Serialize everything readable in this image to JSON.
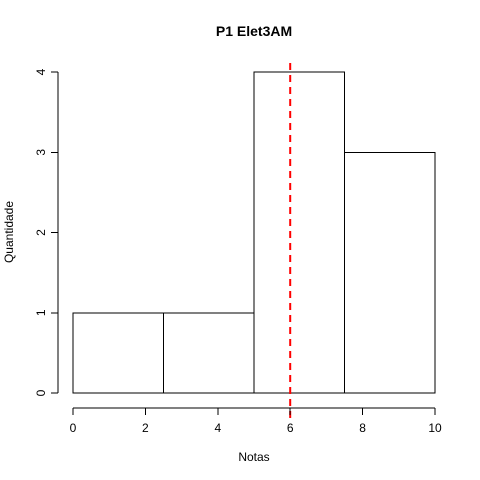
{
  "chart_data": {
    "type": "bar",
    "title": "P1 Elet3AM",
    "xlabel": "Notas",
    "ylabel": "Quantidade",
    "bins": [
      {
        "x0": 0,
        "x1": 2.5,
        "count": 1
      },
      {
        "x0": 2.5,
        "x1": 5,
        "count": 1
      },
      {
        "x0": 5,
        "x1": 7.5,
        "count": 4
      },
      {
        "x0": 7.5,
        "x1": 10,
        "count": 3
      }
    ],
    "xlim": [
      0,
      10
    ],
    "ylim": [
      0,
      4
    ],
    "x_ticks": [
      "0",
      "2",
      "4",
      "6",
      "8",
      "10"
    ],
    "y_ticks": [
      "0",
      "1",
      "2",
      "3",
      "4"
    ],
    "reference_line": {
      "x": 6,
      "color": "#ff0000",
      "style": "dashed"
    },
    "bar_fill": "#ffffff",
    "bar_stroke": "#000000",
    "grid": false
  }
}
